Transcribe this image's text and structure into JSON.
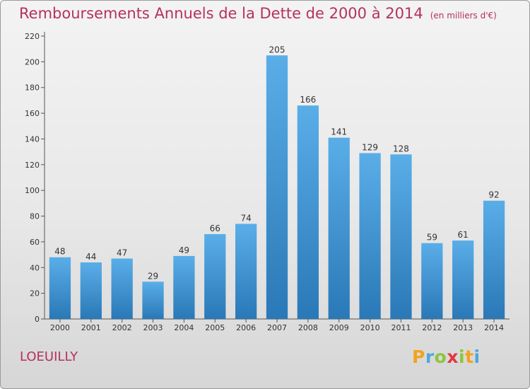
{
  "header": {
    "title": "Remboursements Annuels de la Dette de 2000 à 2014",
    "unit_note": "(en milliers d'€)"
  },
  "footer": {
    "commune": "LOEUILLY",
    "logo_text": "Proxiti",
    "logo_colors": [
      "#f3a21a",
      "#4ea7dc",
      "#8cc63f",
      "#e2383e",
      "#8cc63f",
      "#f3a21a",
      "#4ea7dc"
    ]
  },
  "colors": {
    "title": "#b5325c",
    "bar_top": "#5aaee8",
    "bar_bottom": "#2a78b7"
  },
  "chart_data": {
    "type": "bar",
    "categories": [
      "2000",
      "2001",
      "2002",
      "2003",
      "2004",
      "2005",
      "2006",
      "2007",
      "2008",
      "2009",
      "2010",
      "2011",
      "2012",
      "2013",
      "2014"
    ],
    "values": [
      48,
      44,
      47,
      29,
      49,
      66,
      74,
      205,
      166,
      141,
      129,
      128,
      59,
      61,
      92
    ],
    "ylim": [
      0,
      220
    ],
    "yticks": [
      0,
      20,
      40,
      60,
      80,
      100,
      120,
      140,
      160,
      180,
      200,
      220
    ],
    "grid": false,
    "legend": "none"
  }
}
